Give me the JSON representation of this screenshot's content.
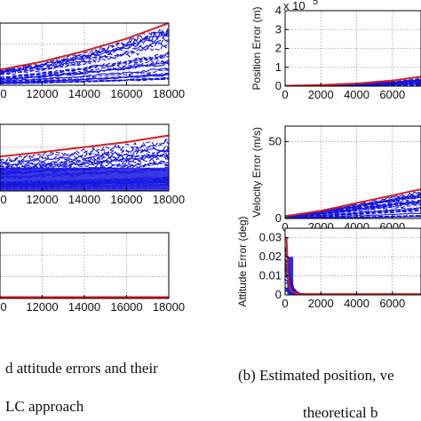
{
  "colors": {
    "bound": "#d42020",
    "estimate": "#1515e0",
    "grid": "#9a9a9a",
    "axis": "#000000"
  },
  "chart_data": [
    {
      "type": "line",
      "panel": "left-top",
      "x_ticks": [
        "12000",
        "14000",
        "16000",
        "18000"
      ],
      "partial_x_tick": "0",
      "x_range": [
        10000,
        18000
      ],
      "bound": {
        "x": [
          10000,
          12000,
          14000,
          16000,
          18000
        ],
        "y": [
          0.25,
          0.38,
          0.55,
          0.75,
          1.0
        ]
      },
      "ylim": [
        0,
        1
      ]
    },
    {
      "type": "line",
      "panel": "left-middle",
      "x_ticks": [
        "12000",
        "14000",
        "16000",
        "18000"
      ],
      "partial_x_tick": "0",
      "x_range": [
        10000,
        18000
      ],
      "bound": {
        "x": [
          10000,
          12000,
          14000,
          16000,
          18000
        ],
        "y": [
          0.62,
          0.7,
          0.79,
          0.88,
          1.0
        ]
      },
      "ylim": [
        0,
        1.2
      ]
    },
    {
      "type": "line",
      "panel": "left-bottom",
      "x_ticks": [
        "12000",
        "14000",
        "16000",
        "18000"
      ],
      "partial_x_tick": "0",
      "x_range": [
        10000,
        18000
      ],
      "bound": {
        "x": [
          10000,
          18000
        ],
        "y": [
          0.02,
          0.02
        ]
      },
      "ylim": [
        0,
        1
      ]
    },
    {
      "type": "line",
      "panel": "right-top",
      "ylabel": "Position Error (m)",
      "multiplier": "x 10",
      "multiplier_exp": "5",
      "y_ticks": [
        "0",
        "1",
        "2",
        "3",
        "4"
      ],
      "x_ticks": [
        "0",
        "2000",
        "4000",
        "6000"
      ],
      "ylim": [
        0,
        4
      ],
      "x_range": [
        0,
        7600
      ],
      "bound": {
        "x": [
          0,
          2000,
          4000,
          6000,
          7600
        ],
        "y": [
          0.02,
          0.06,
          0.14,
          0.3,
          0.5
        ]
      }
    },
    {
      "type": "line",
      "panel": "right-middle",
      "ylabel": "Velocity Error (m/s)",
      "y_ticks": [
        "0",
        "50"
      ],
      "x_ticks": [
        "0",
        "2000",
        "4000",
        "6000"
      ],
      "ylim": [
        0,
        60
      ],
      "x_range": [
        0,
        7600
      ],
      "bound": {
        "x": [
          0,
          2000,
          4000,
          6000,
          7600
        ],
        "y": [
          1.5,
          5,
          10,
          15,
          19
        ]
      }
    },
    {
      "type": "line",
      "panel": "right-bottom",
      "ylabel": "Attitude Error (deg)",
      "y_ticks": [
        "0",
        "0.01",
        "0.02",
        "0.03"
      ],
      "x_ticks": [
        "0",
        "2000",
        "4000",
        "6000"
      ],
      "ylim": [
        0,
        0.035
      ],
      "x_range": [
        0,
        7600
      ],
      "bound": {
        "x": [
          0,
          80,
          150,
          250,
          400,
          700,
          1200,
          7600
        ],
        "y": [
          0.03,
          0.03,
          0.012,
          0.004,
          0.0015,
          0.0006,
          0.0004,
          0.0004
        ]
      }
    }
  ],
  "captions": {
    "left_line1": "d attitude errors and their",
    "left_line2": "LC approach",
    "right_line1": "(b) Estimated position, ve",
    "right_line2": "theoretical b"
  }
}
